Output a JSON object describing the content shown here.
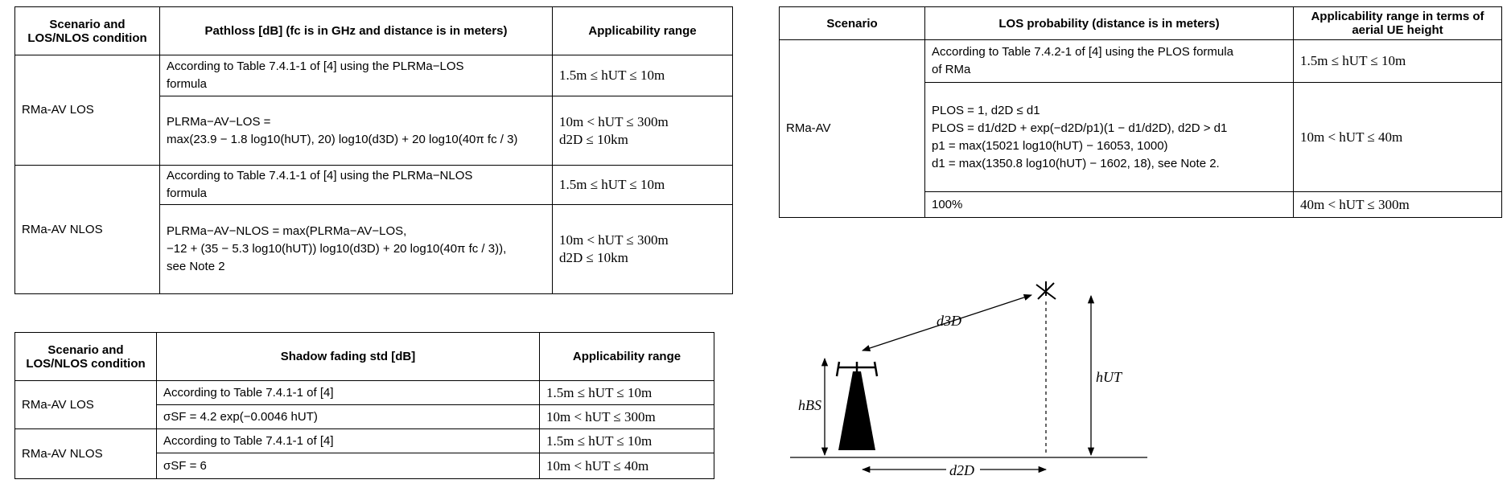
{
  "pathloss_table": {
    "headers": [
      "Scenario and LOS/NLOS condition",
      "Pathloss [dB] (fc is in GHz and distance is in meters)",
      "Applicability range"
    ],
    "groups": [
      {
        "scenario": "RMa-AV LOS",
        "rows": [
          [
            [
              "According to Table 7.4.1-1 of [4] using the PLRMa−LOS",
              "formula"
            ],
            [
              "1.5m ≤ hUT ≤ 10m"
            ]
          ],
          [
            [
              "PLRMa−AV−LOS =",
              "max(23.9 − 1.8 log10(hUT), 20) log10(d3D) + 20 log10(40π fc / 3)"
            ],
            [
              "10m < hUT ≤ 300m",
              "d2D ≤ 10km"
            ]
          ]
        ]
      },
      {
        "scenario": "RMa-AV NLOS",
        "rows": [
          [
            [
              "According to Table 7.4.1-1 of [4] using the PLRMa−NLOS",
              "formula"
            ],
            [
              "1.5m ≤ hUT ≤ 10m"
            ]
          ],
          [
            [
              "PLRMa−AV−NLOS = max(PLRMa−AV−LOS,",
              "−12 + (35 − 5.3 log10(hUT)) log10(d3D) + 20 log10(40π fc / 3)),",
              "see Note 2"
            ],
            [
              "10m < hUT ≤ 300m",
              "d2D ≤ 10km"
            ]
          ]
        ]
      }
    ]
  },
  "shadow_table": {
    "headers": [
      "Scenario and LOS/NLOS condition",
      "Shadow fading std [dB]",
      "Applicability range"
    ],
    "groups": [
      {
        "scenario": "RMa-AV LOS",
        "rows": [
          [
            [
              "According to Table 7.4.1-1 of [4]"
            ],
            [
              "1.5m ≤ hUT ≤ 10m"
            ]
          ],
          [
            [
              "σSF = 4.2 exp(−0.0046 hUT)"
            ],
            [
              "10m < hUT ≤ 300m"
            ]
          ]
        ]
      },
      {
        "scenario": "RMa-AV NLOS",
        "rows": [
          [
            [
              "According to Table 7.4.1-1 of [4]"
            ],
            [
              "1.5m ≤ hUT ≤ 10m"
            ]
          ],
          [
            [
              "σSF = 6"
            ],
            [
              "10m < hUT ≤ 40m"
            ]
          ]
        ]
      }
    ]
  },
  "los_table": {
    "headers": [
      "Scenario",
      "LOS probability (distance is in meters)",
      "Applicability range in terms of aerial UE height"
    ],
    "groups": [
      {
        "scenario": "RMa-AV",
        "rows": [
          [
            [
              "According to Table 7.4.2-1 of [4] using the PLOS formula",
              "of RMa"
            ],
            [
              "1.5m ≤ hUT ≤ 10m"
            ]
          ],
          [
            [
              "PLOS = 1,   d2D ≤ d1",
              "PLOS = d1/d2D + exp(−d2D/p1)(1 − d1/d2D),   d2D > d1",
              "p1 = max(15021 log10(hUT) − 16053, 1000)",
              "d1 = max(1350.8 log10(hUT) − 1602, 18), see Note 2."
            ],
            [
              "10m < hUT ≤ 40m"
            ]
          ],
          [
            [
              "100%"
            ],
            [
              "40m < hUT ≤ 300m"
            ]
          ]
        ]
      }
    ]
  },
  "diagram": {
    "labels": {
      "d3d": "d3D",
      "h_bs": "hBS",
      "h_ut": "hUT",
      "d2d": "d2D"
    }
  }
}
